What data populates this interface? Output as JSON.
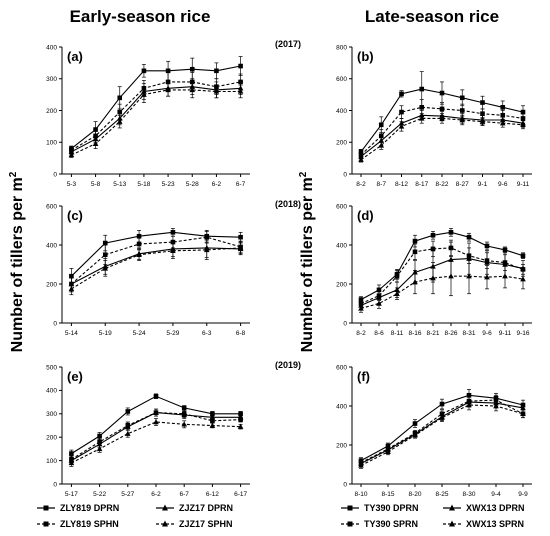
{
  "figure": {
    "left_title": "Early-season rice",
    "right_title": "Late-season rice",
    "left_ylabel": "Number of tillers per m",
    "right_ylabel": "Number of tillers per m",
    "ylabel_superscript": "2",
    "years": [
      "(2017)",
      "(2018)",
      "(2019)"
    ]
  },
  "legends": {
    "left": [
      "ZLY819 DPRN",
      "ZJZ17 DPRN",
      "ZLY819 SPHN",
      "ZJZ17 SPHN"
    ],
    "right": [
      "TY390 DPRN",
      "XWX13 DPRN",
      "TY390 SPRN",
      "XWX13 SPRN"
    ]
  },
  "chart_data": [
    {
      "type": "line",
      "panel": "(a)",
      "x": [
        "5-3",
        "5-8",
        "5-13",
        "5-18",
        "5-23",
        "5-28",
        "6-2",
        "6-7"
      ],
      "yticks": [
        0,
        100,
        200,
        300,
        400
      ],
      "ylim": [
        0,
        400
      ],
      "series": [
        {
          "name": "ZLY819 DPRN",
          "values": [
            80,
            140,
            240,
            325,
            325,
            330,
            325,
            340
          ],
          "err": [
            8,
            25,
            35,
            20,
            30,
            35,
            25,
            30
          ]
        },
        {
          "name": "ZLY819 SPHN",
          "values": [
            75,
            120,
            195,
            270,
            290,
            290,
            275,
            290
          ],
          "err": [
            8,
            20,
            25,
            25,
            30,
            30,
            25,
            25
          ]
        },
        {
          "name": "ZJZ17 DPRN",
          "values": [
            70,
            110,
            175,
            260,
            270,
            275,
            265,
            270
          ],
          "err": [
            8,
            15,
            20,
            25,
            25,
            25,
            25,
            20
          ]
        },
        {
          "name": "ZJZ17 SPHN",
          "values": [
            60,
            95,
            165,
            250,
            265,
            265,
            260,
            260
          ],
          "err": [
            8,
            15,
            20,
            25,
            20,
            25,
            20,
            20
          ]
        }
      ]
    },
    {
      "type": "line",
      "panel": "(b)",
      "x": [
        "8-2",
        "8-7",
        "8-12",
        "8-17",
        "8-22",
        "8-27",
        "9-1",
        "9-6",
        "9-11"
      ],
      "yticks": [
        0,
        200,
        400,
        600,
        800
      ],
      "ylim": [
        0,
        800
      ],
      "series": [
        {
          "name": "TY390 DPRN",
          "values": [
            140,
            310,
            505,
            535,
            510,
            480,
            450,
            420,
            390
          ],
          "err": [
            15,
            50,
            20,
            110,
            70,
            50,
            40,
            40,
            40
          ]
        },
        {
          "name": "TY390 SPRN",
          "values": [
            120,
            240,
            390,
            420,
            410,
            400,
            380,
            370,
            350
          ],
          "err": [
            15,
            40,
            40,
            50,
            40,
            40,
            30,
            30,
            30
          ]
        },
        {
          "name": "XWX13 DPRN",
          "values": [
            110,
            210,
            320,
            370,
            365,
            350,
            340,
            340,
            320
          ],
          "err": [
            15,
            30,
            30,
            30,
            30,
            30,
            30,
            25,
            25
          ]
        },
        {
          "name": "XWX13 SPRN",
          "values": [
            90,
            180,
            300,
            350,
            350,
            340,
            330,
            320,
            310
          ],
          "err": [
            15,
            25,
            30,
            30,
            30,
            30,
            25,
            25,
            25
          ]
        }
      ]
    },
    {
      "type": "line",
      "panel": "(c)",
      "x": [
        "5-14",
        "5-19",
        "5-24",
        "5-29",
        "6-3",
        "6-8"
      ],
      "yticks": [
        0,
        200,
        400,
        600
      ],
      "ylim": [
        0,
        600
      ],
      "series": [
        {
          "name": "ZLY819 DPRN",
          "values": [
            240,
            410,
            445,
            465,
            445,
            440
          ],
          "err": [
            40,
            40,
            30,
            20,
            30,
            25
          ]
        },
        {
          "name": "ZLY819 SPHN",
          "values": [
            200,
            350,
            405,
            415,
            440,
            390
          ],
          "err": [
            40,
            50,
            30,
            30,
            30,
            30
          ]
        },
        {
          "name": "ZJZ17 DPRN",
          "values": [
            200,
            290,
            355,
            380,
            385,
            380
          ],
          "err": [
            40,
            40,
            30,
            40,
            50,
            30
          ]
        },
        {
          "name": "ZJZ17 SPHN",
          "values": [
            175,
            280,
            350,
            370,
            375,
            385
          ],
          "err": [
            30,
            40,
            30,
            40,
            50,
            30
          ]
        }
      ]
    },
    {
      "type": "line",
      "panel": "(d)",
      "x": [
        "8-2",
        "8-6",
        "8-11",
        "8-16",
        "8-21",
        "8-26",
        "8-31",
        "9-6",
        "9-11",
        "9-16"
      ],
      "yticks": [
        0,
        200,
        400,
        600
      ],
      "ylim": [
        0,
        600
      ],
      "series": [
        {
          "name": "TY390 DPRN",
          "values": [
            120,
            170,
            250,
            420,
            450,
            465,
            440,
            395,
            375,
            345
          ],
          "err": [
            15,
            25,
            25,
            30,
            20,
            20,
            20,
            20,
            15,
            15
          ]
        },
        {
          "name": "TY390 SPRN",
          "values": [
            100,
            140,
            240,
            365,
            380,
            385,
            345,
            320,
            310,
            275
          ],
          "err": [
            15,
            25,
            30,
            40,
            40,
            40,
            40,
            40,
            40,
            25
          ]
        },
        {
          "name": "XWX13 DPRN",
          "values": [
            90,
            130,
            170,
            260,
            290,
            325,
            330,
            310,
            300,
            280
          ],
          "err": [
            20,
            30,
            40,
            60,
            80,
            90,
            80,
            60,
            60,
            40
          ]
        },
        {
          "name": "XWX13 SPRN",
          "values": [
            75,
            100,
            150,
            210,
            230,
            240,
            240,
            235,
            240,
            225
          ],
          "err": [
            20,
            25,
            30,
            60,
            80,
            100,
            90,
            60,
            60,
            50
          ]
        }
      ]
    },
    {
      "type": "line",
      "panel": "(e)",
      "x": [
        "5-17",
        "5-22",
        "5-27",
        "6-2",
        "6-7",
        "6-12",
        "6-17"
      ],
      "yticks": [
        0,
        100,
        200,
        300,
        400,
        500
      ],
      "ylim": [
        0,
        500
      ],
      "series": [
        {
          "name": "ZLY819 DPRN",
          "values": [
            130,
            205,
            310,
            375,
            325,
            300,
            300
          ],
          "err": [
            15,
            15,
            15,
            10,
            10,
            10,
            10
          ]
        },
        {
          "name": "ZLY819 SPHN",
          "values": [
            105,
            180,
            250,
            305,
            300,
            270,
            275
          ],
          "err": [
            15,
            15,
            15,
            15,
            15,
            10,
            10
          ]
        },
        {
          "name": "ZJZ17 DPRN",
          "values": [
            100,
            170,
            245,
            305,
            295,
            285,
            285
          ],
          "err": [
            15,
            15,
            15,
            15,
            15,
            10,
            10
          ]
        },
        {
          "name": "ZJZ17 SPHN",
          "values": [
            90,
            150,
            215,
            265,
            255,
            250,
            245
          ],
          "err": [
            15,
            15,
            15,
            15,
            15,
            10,
            10
          ]
        }
      ]
    },
    {
      "type": "line",
      "panel": "(f)",
      "x": [
        "8-10",
        "8-15",
        "8-20",
        "8-25",
        "8-30",
        "9-4",
        "9-9"
      ],
      "yticks": [
        0,
        200,
        400,
        600
      ],
      "ylim": [
        0,
        600
      ],
      "series": [
        {
          "name": "TY390 DPRN",
          "values": [
            120,
            195,
            310,
            410,
            455,
            440,
            405
          ],
          "err": [
            15,
            15,
            20,
            25,
            30,
            25,
            25
          ]
        },
        {
          "name": "TY390 SPRN",
          "values": [
            110,
            180,
            260,
            360,
            425,
            430,
            360
          ],
          "err": [
            15,
            15,
            15,
            20,
            25,
            25,
            20
          ]
        },
        {
          "name": "XWX13 DPRN",
          "values": [
            105,
            175,
            255,
            345,
            420,
            415,
            390
          ],
          "err": [
            15,
            15,
            15,
            20,
            25,
            25,
            20
          ]
        },
        {
          "name": "XWX13 SPRN",
          "values": [
            95,
            165,
            250,
            340,
            405,
            400,
            360
          ],
          "err": [
            15,
            15,
            15,
            20,
            25,
            25,
            20
          ]
        }
      ]
    }
  ]
}
